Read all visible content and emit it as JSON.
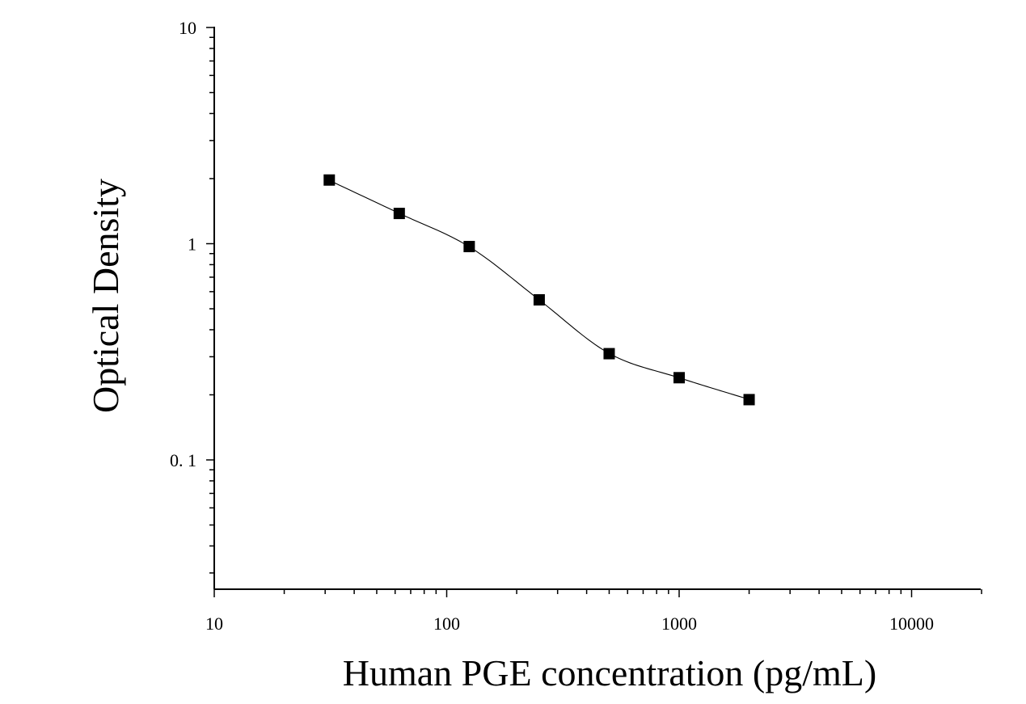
{
  "chart_data": {
    "type": "scatter",
    "xlabel": "Human PGE concentration (pg/mL)",
    "ylabel": "Optical Density",
    "xscale": "log",
    "yscale": "log",
    "xlim": [
      10,
      20000
    ],
    "ylim": [
      0.025,
      10
    ],
    "x_tick_labels": [
      "10",
      "100",
      "1000",
      "10000"
    ],
    "x_tick_values": [
      10,
      100,
      1000,
      10000
    ],
    "y_tick_labels": [
      "0. 1",
      "1",
      "10"
    ],
    "y_tick_values": [
      0.1,
      1,
      10
    ],
    "grid": false,
    "legend": "none",
    "marker": "square",
    "color": "#000000",
    "points": [
      {
        "x": 31.25,
        "y": 1.97
      },
      {
        "x": 62.5,
        "y": 1.38
      },
      {
        "x": 125,
        "y": 0.97
      },
      {
        "x": 250,
        "y": 0.55
      },
      {
        "x": 500,
        "y": 0.31
      },
      {
        "x": 1000,
        "y": 0.24
      },
      {
        "x": 2000,
        "y": 0.19
      }
    ],
    "fit_curve": {
      "type": "4PL",
      "x_range": [
        31.25,
        2000
      ]
    }
  }
}
